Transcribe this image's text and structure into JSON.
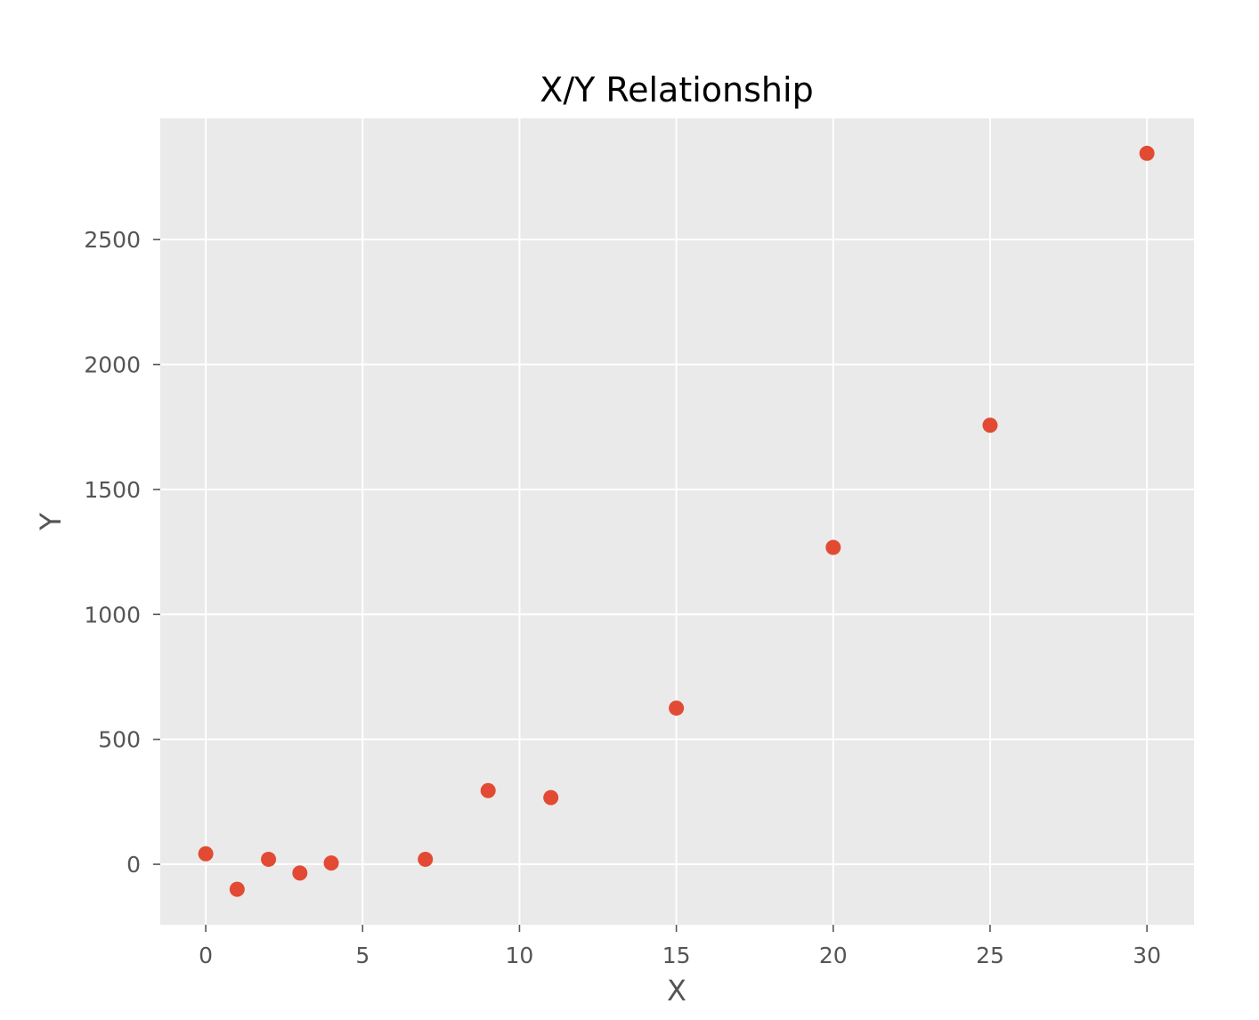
{
  "chart_data": {
    "type": "scatter",
    "title": "X/Y Relationship",
    "xlabel": "X",
    "ylabel": "Y",
    "xlim": [
      -1.45,
      31.5
    ],
    "ylim": [
      -242,
      2985
    ],
    "x_ticks": [
      0,
      5,
      10,
      15,
      20,
      25,
      30
    ],
    "y_ticks": [
      0,
      500,
      1000,
      1500,
      2000,
      2500
    ],
    "grid": true,
    "legend": "none",
    "colors": {
      "plot_background": "#EAEAEA",
      "grid": "#FFFFFF",
      "point": "#E24A33",
      "tick_label": "#555555"
    },
    "series": [
      {
        "points": [
          {
            "x": 0,
            "y": 42
          },
          {
            "x": 1,
            "y": -100
          },
          {
            "x": 2,
            "y": 20
          },
          {
            "x": 3,
            "y": -35
          },
          {
            "x": 4,
            "y": 5
          },
          {
            "x": 7,
            "y": 20
          },
          {
            "x": 9,
            "y": 295
          },
          {
            "x": 11,
            "y": 267
          },
          {
            "x": 15,
            "y": 625
          },
          {
            "x": 20,
            "y": 1268
          },
          {
            "x": 25,
            "y": 1757
          },
          {
            "x": 30,
            "y": 2845
          }
        ]
      }
    ]
  }
}
